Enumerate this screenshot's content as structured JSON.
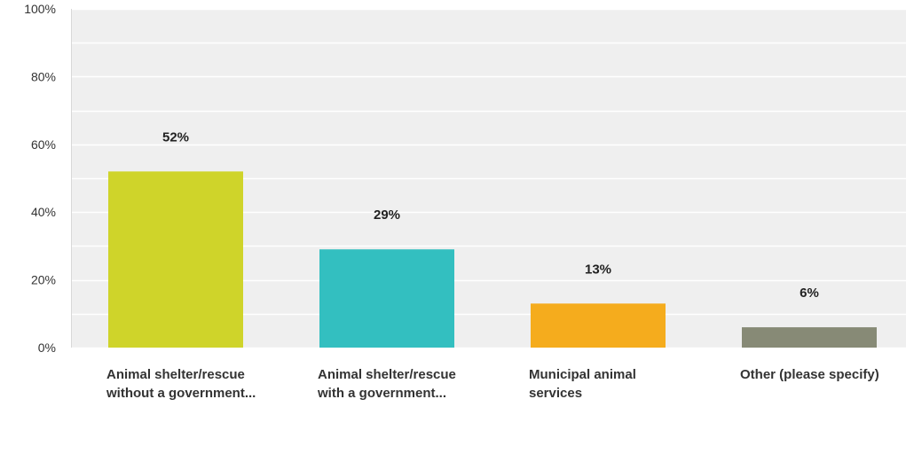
{
  "chart_data": {
    "type": "bar",
    "categories": [
      "Animal shelter/rescue without a government...",
      "Animal shelter/rescue with a government...",
      "Municipal animal services",
      "Other (please specify)"
    ],
    "values": [
      52,
      29,
      13,
      6
    ],
    "data_labels": [
      "52%",
      "29%",
      "13%",
      "6%"
    ],
    "colors": [
      "#cfd42a",
      "#33bfc0",
      "#f5ac1d",
      "#878a76"
    ],
    "ylim": [
      0,
      100
    ],
    "yticks": [
      0,
      20,
      40,
      60,
      80,
      100
    ],
    "ytick_labels": [
      "0%",
      "20%",
      "40%",
      "60%",
      "80%",
      "100%"
    ],
    "grid": true,
    "background": "#efefef",
    "title": "",
    "xlabel": "",
    "ylabel": ""
  }
}
